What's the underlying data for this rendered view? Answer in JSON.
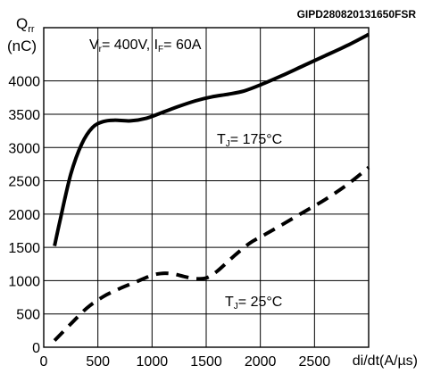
{
  "chart_data": {
    "type": "line",
    "figure_id": "GIPD280820131650FSR",
    "title": "",
    "ylabel": {
      "main": "Q",
      "sub": "rr",
      "unit": "(nC)"
    },
    "xlabel": "di/dt(A/µs)",
    "conditions": {
      "v_main": "V",
      "v_sub": "r",
      "v_rest": "= 400V, ",
      "i_main": "I",
      "i_sub": "F",
      "i_rest": "= 60A"
    },
    "xlim": [
      0,
      3000
    ],
    "ylim": [
      0,
      4800
    ],
    "xticks": [
      0,
      500,
      1000,
      1500,
      2000,
      2500
    ],
    "yticks": [
      0,
      500,
      1000,
      1500,
      2000,
      2500,
      3000,
      3500,
      4000
    ],
    "grid": true,
    "series": [
      {
        "name": "",
        "label": {
          "main": "T",
          "sub": "J",
          "rest": "= 175°C"
        },
        "style": "solid",
        "color": "#000000",
        "x": [
          100,
          150,
          250,
          350,
          450,
          550,
          650,
          800,
          950,
          1100,
          1250,
          1400,
          1550,
          1700,
          1850,
          2000,
          2200,
          2400,
          2600,
          2800,
          3000
        ],
        "y": [
          1520,
          1900,
          2600,
          3050,
          3300,
          3390,
          3410,
          3400,
          3440,
          3530,
          3620,
          3700,
          3760,
          3800,
          3850,
          3940,
          4080,
          4230,
          4380,
          4530,
          4700
        ]
      },
      {
        "name": "",
        "label": {
          "main": "T",
          "sub": "J",
          "rest": "= 25°C"
        },
        "style": "dashed",
        "color": "#000000",
        "x": [
          100,
          250,
          400,
          550,
          700,
          850,
          1000,
          1100,
          1200,
          1300,
          1400,
          1500,
          1600,
          1750,
          1900,
          2050,
          2200,
          2400,
          2600,
          2800,
          3000
        ],
        "y": [
          100,
          350,
          590,
          760,
          880,
          980,
          1080,
          1110,
          1100,
          1060,
          1030,
          1040,
          1140,
          1360,
          1560,
          1700,
          1840,
          2030,
          2220,
          2440,
          2700
        ]
      }
    ]
  }
}
